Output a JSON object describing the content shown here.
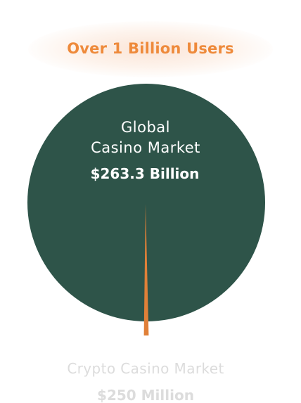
{
  "headline": "Over 1 Billion Users",
  "colors": {
    "accent": "#ee8a3b",
    "primary_slice": "#2e5449",
    "secondary_slice": "#e08038",
    "text_light": "#ffffff",
    "text_faded": "#dcdcdc"
  },
  "chart_data": {
    "type": "pie",
    "title": "",
    "series": [
      {
        "name": "Global Casino Market",
        "label_lines": [
          "Global",
          "Casino Market"
        ],
        "value_label": "$263.3 Billion",
        "value": 263.3,
        "unit": "Billion USD"
      },
      {
        "name": "Crypto Casino Market",
        "label_lines": [
          "Crypto Casino Market"
        ],
        "value_label": "$250 Million",
        "value": 0.25,
        "unit": "Billion USD"
      }
    ]
  }
}
